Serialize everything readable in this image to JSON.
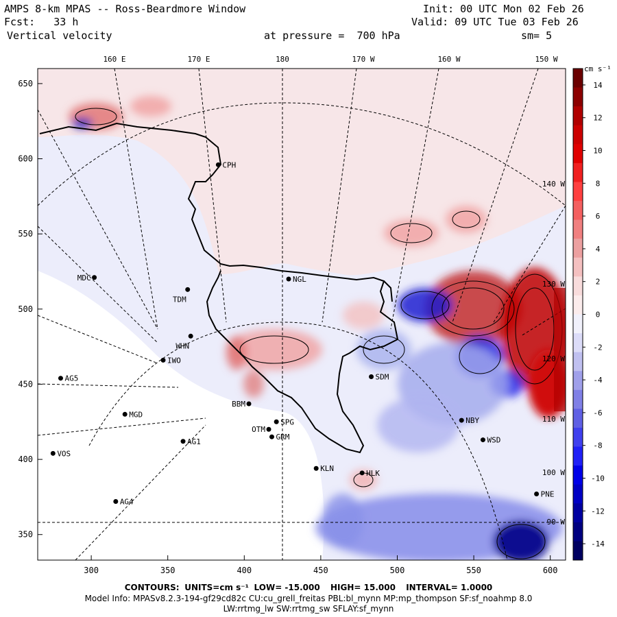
{
  "header": {
    "title": "AMPS 8-km MPAS -- Ross-Beardmore Window",
    "fcst_label": "Fcst:",
    "fcst_value": "33 h",
    "field": "Vertical velocity",
    "pressure_label": "at pressure =",
    "pressure_value": "700 hPa",
    "init": "Init: 00 UTC Mon 02 Feb 26",
    "valid": "Valid: 09 UTC Tue 03 Feb 26",
    "smooth": "sm= 5"
  },
  "map": {
    "lon_labels": [
      "160 E",
      "170 E",
      "180",
      "170 W",
      "160 W",
      "150 W"
    ],
    "right_lon_labels": [
      "140 W",
      "130 W",
      "120 W",
      "110 W",
      "100 W",
      "90 W"
    ],
    "x_ticks": [
      "300",
      "350",
      "400",
      "450",
      "500",
      "550",
      "600"
    ],
    "y_ticks": [
      "650",
      "600",
      "550",
      "500",
      "450",
      "400",
      "350"
    ],
    "stations": [
      {
        "name": "CPH",
        "x": 383,
        "y": 596
      },
      {
        "name": "NGL",
        "x": 429,
        "y": 520
      },
      {
        "name": "MDC",
        "x": 302,
        "y": 521
      },
      {
        "name": "TDM",
        "x": 363,
        "y": 513
      },
      {
        "name": "WHN",
        "x": 365,
        "y": 482
      },
      {
        "name": "IWO",
        "x": 347,
        "y": 466
      },
      {
        "name": "AG5",
        "x": 280,
        "y": 454
      },
      {
        "name": "SDM",
        "x": 483,
        "y": 455
      },
      {
        "name": "BBM",
        "x": 403,
        "y": 437
      },
      {
        "name": "MGD",
        "x": 322,
        "y": 430
      },
      {
        "name": "SPG",
        "x": 421,
        "y": 425
      },
      {
        "name": "OTM",
        "x": 416,
        "y": 420
      },
      {
        "name": "GRM",
        "x": 418,
        "y": 415
      },
      {
        "name": "NBY",
        "x": 542,
        "y": 426
      },
      {
        "name": "AG1",
        "x": 360,
        "y": 412
      },
      {
        "name": "WSD",
        "x": 556,
        "y": 413
      },
      {
        "name": "VOS",
        "x": 275,
        "y": 404
      },
      {
        "name": "KLN",
        "x": 447,
        "y": 394
      },
      {
        "name": "HLK",
        "x": 477,
        "y": 391
      },
      {
        "name": "AG4",
        "x": 316,
        "y": 372
      },
      {
        "name": "PNE",
        "x": 591,
        "y": 377
      }
    ]
  },
  "colorbar": {
    "unit": "cm s⁻¹",
    "labels": [
      "14",
      "12",
      "10",
      "8",
      "6",
      "4",
      "2",
      "0",
      "-2",
      "-4",
      "-6",
      "-8",
      "-10",
      "-12",
      "-14"
    ],
    "colors": [
      "#6b0000",
      "#8c0000",
      "#b00000",
      "#cc0000",
      "#e00000",
      "#f02020",
      "#ff4040",
      "#f46060",
      "#f08080",
      "#eca0a0",
      "#f4c0c0",
      "#f8dcdc",
      "#fbecec",
      "#f1f1fb",
      "#dcdcf8",
      "#c0c0f0",
      "#a0a0ea",
      "#8080e6",
      "#6060e4",
      "#4040ee",
      "#2020f6",
      "#0000e8",
      "#0000c4",
      "#0000a0",
      "#000080",
      "#000060"
    ]
  },
  "footer": {
    "contours_label": "CONTOURS:",
    "units": "UNITS=cm s⁻¹",
    "low": "LOW= -15.000",
    "high": "HIGH= 15.000",
    "interval": "INTERVAL= 1.0000",
    "model_info": "Model Info: MPASv8.2.3-194-gf29cd82c CU:cu_grell_freitas PBL:bl_mynn MP:mp_thompson SF:sf_noahmp 8.0",
    "model_info2": "LW:rrtmg_lw SW:rrtmg_sw SFLAY:sf_mynn"
  }
}
